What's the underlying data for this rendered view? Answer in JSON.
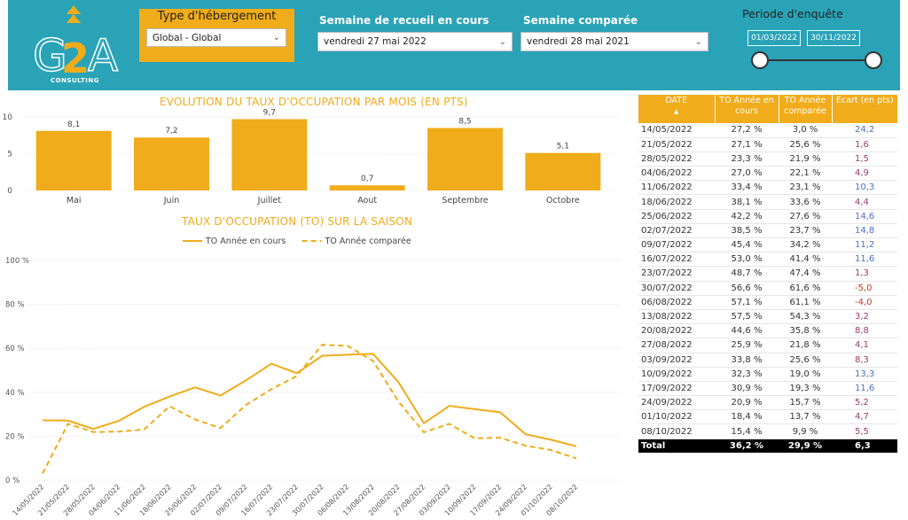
{
  "header": {
    "logo_text": "G2A",
    "logo_sub": "CONSULTING",
    "type_hebergement": {
      "label": "Type d'hébergement",
      "value": "Global - Global"
    },
    "semaine_recueil": {
      "label": "Semaine de recueil en cours",
      "value": "vendredi 27 mai 2022"
    },
    "semaine_comparee": {
      "label": "Semaine comparée",
      "value": "vendredi 28 mai 2021"
    },
    "periode": {
      "label": "Periode d'enquête",
      "start": "01/03/2022",
      "end": "30/11/2022"
    }
  },
  "colors": {
    "accent": "#f0ac1a",
    "header_bg": "#2aa3b7",
    "positive": "#4a70c8",
    "negative": "#c0392b"
  },
  "chart_data": [
    {
      "type": "bar",
      "title": "EVOLUTION DU TAUX D'OCCUPATION PAR MOIS (EN PTS)",
      "categories": [
        "Mai",
        "Juin",
        "Juillet",
        "Aout",
        "Septembre",
        "Octobre"
      ],
      "values": [
        8.1,
        7.2,
        9.7,
        0.7,
        8.5,
        5.1
      ],
      "value_labels": [
        "8,1",
        "7,2",
        "9,7",
        "0,7",
        "8,5",
        "5,1"
      ],
      "yticks": [
        "0",
        "5",
        "10"
      ],
      "ylim": [
        0,
        10
      ],
      "grid": true
    },
    {
      "type": "line",
      "title": "TAUX D'OCCUPATION (TO) SUR LA SAISON",
      "x": [
        "14/05/2022",
        "21/05/2022",
        "28/05/2022",
        "04/06/2022",
        "11/06/2022",
        "18/06/2022",
        "25/06/2022",
        "02/07/2022",
        "09/07/2022",
        "16/07/2022",
        "23/07/2022",
        "30/07/2022",
        "06/08/2022",
        "13/08/2022",
        "20/08/2022",
        "27/08/2022",
        "03/09/2022",
        "10/09/2022",
        "17/09/2022",
        "24/09/2022",
        "01/10/2022",
        "08/10/2022"
      ],
      "series": [
        {
          "name": "TO Année en cours",
          "style": "solid",
          "values": [
            27.2,
            27.1,
            23.3,
            27.0,
            33.4,
            38.1,
            42.2,
            38.5,
            45.4,
            53.0,
            48.7,
            56.6,
            57.1,
            57.5,
            44.6,
            25.9,
            33.8,
            32.3,
            30.9,
            20.9,
            18.4,
            15.4
          ]
        },
        {
          "name": "TO Année comparée",
          "style": "dashed",
          "values": [
            3.0,
            25.6,
            21.9,
            22.1,
            23.1,
            33.6,
            27.6,
            23.7,
            34.2,
            41.4,
            47.4,
            61.6,
            61.1,
            54.3,
            35.8,
            21.8,
            25.6,
            19.0,
            19.3,
            15.7,
            13.7,
            9.9
          ]
        }
      ],
      "yticks": [
        "0 %",
        "20 %",
        "40 %",
        "60 %",
        "80 %",
        "100 %"
      ],
      "ylim": [
        0,
        100
      ],
      "legend": "top-center",
      "grid": true
    }
  ],
  "table": {
    "headers": [
      "DATE",
      "TO Année en cours",
      "TO Année comparée",
      "Ecart (en pts)"
    ],
    "rows": [
      [
        "14/05/2022",
        "27,2 %",
        "3,0 %",
        "24,2"
      ],
      [
        "21/05/2022",
        "27,1 %",
        "25,6 %",
        "1,6"
      ],
      [
        "28/05/2022",
        "23,3 %",
        "21,9 %",
        "1,5"
      ],
      [
        "04/06/2022",
        "27,0 %",
        "22,1 %",
        "4,9"
      ],
      [
        "11/06/2022",
        "33,4 %",
        "23,1 %",
        "10,3"
      ],
      [
        "18/06/2022",
        "38,1 %",
        "33,6 %",
        "4,4"
      ],
      [
        "25/06/2022",
        "42,2 %",
        "27,6 %",
        "14,6"
      ],
      [
        "02/07/2022",
        "38,5 %",
        "23,7 %",
        "14,8"
      ],
      [
        "09/07/2022",
        "45,4 %",
        "34,2 %",
        "11,2"
      ],
      [
        "16/07/2022",
        "53,0 %",
        "41,4 %",
        "11,6"
      ],
      [
        "23/07/2022",
        "48,7 %",
        "47,4 %",
        "1,3"
      ],
      [
        "30/07/2022",
        "56,6 %",
        "61,6 %",
        "-5,0"
      ],
      [
        "06/08/2022",
        "57,1 %",
        "61,1 %",
        "-4,0"
      ],
      [
        "13/08/2022",
        "57,5 %",
        "54,3 %",
        "3,2"
      ],
      [
        "20/08/2022",
        "44,6 %",
        "35,8 %",
        "8,8"
      ],
      [
        "27/08/2022",
        "25,9 %",
        "21,8 %",
        "4,1"
      ],
      [
        "03/09/2022",
        "33,8 %",
        "25,6 %",
        "8,3"
      ],
      [
        "10/09/2022",
        "32,3 %",
        "19,0 %",
        "13,3"
      ],
      [
        "17/09/2022",
        "30,9 %",
        "19,3 %",
        "11,6"
      ],
      [
        "24/09/2022",
        "20,9 %",
        "15,7 %",
        "5,2"
      ],
      [
        "01/10/2022",
        "18,4 %",
        "13,7 %",
        "4,7"
      ],
      [
        "08/10/2022",
        "15,4 %",
        "9,9 %",
        "5,5"
      ]
    ],
    "total": [
      "Total",
      "36,2 %",
      "29,9 %",
      "6,3"
    ]
  }
}
